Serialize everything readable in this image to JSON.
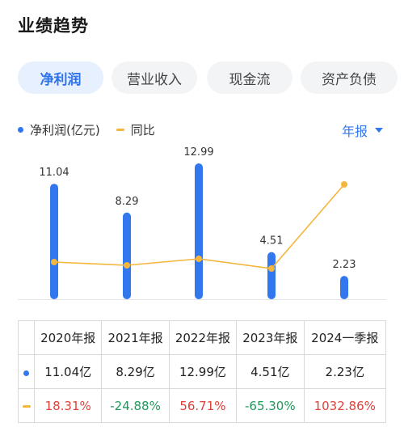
{
  "header": {
    "title": "业绩趋势"
  },
  "tabs": [
    {
      "label": "净利润",
      "active": true
    },
    {
      "label": "营业收入",
      "active": false
    },
    {
      "label": "现金流",
      "active": false
    },
    {
      "label": "资产负债",
      "active": false
    }
  ],
  "legend": {
    "bars": "净利润(亿元)",
    "line": "同比"
  },
  "period_selector": {
    "label": "年报"
  },
  "colors": {
    "accent": "#3377ee",
    "line": "#f4b63c",
    "up": "#e0403a",
    "down": "#1f9a5b"
  },
  "chart_data": {
    "type": "bar",
    "categories": [
      "2020年报",
      "2021年报",
      "2022年报",
      "2023年报",
      "2024一季报"
    ],
    "series": [
      {
        "name": "净利润(亿元)",
        "type": "bar",
        "values": [
          11.04,
          8.29,
          12.99,
          4.51,
          2.23
        ]
      },
      {
        "name": "同比",
        "type": "line",
        "values": [
          18.31,
          -24.88,
          56.71,
          -65.3,
          1032.86
        ]
      }
    ],
    "data_labels": [
      "11.04",
      "8.29",
      "12.99",
      "4.51",
      "2.23"
    ]
  },
  "table": {
    "columns": [
      "2020年报",
      "2021年报",
      "2022年报",
      "2023年报",
      "2024一季报"
    ],
    "profit": [
      "11.04亿",
      "8.29亿",
      "12.99亿",
      "4.51亿",
      "2.23亿"
    ],
    "yoy": [
      "18.31%",
      "-24.88%",
      "56.71%",
      "-65.30%",
      "1032.86%"
    ]
  }
}
